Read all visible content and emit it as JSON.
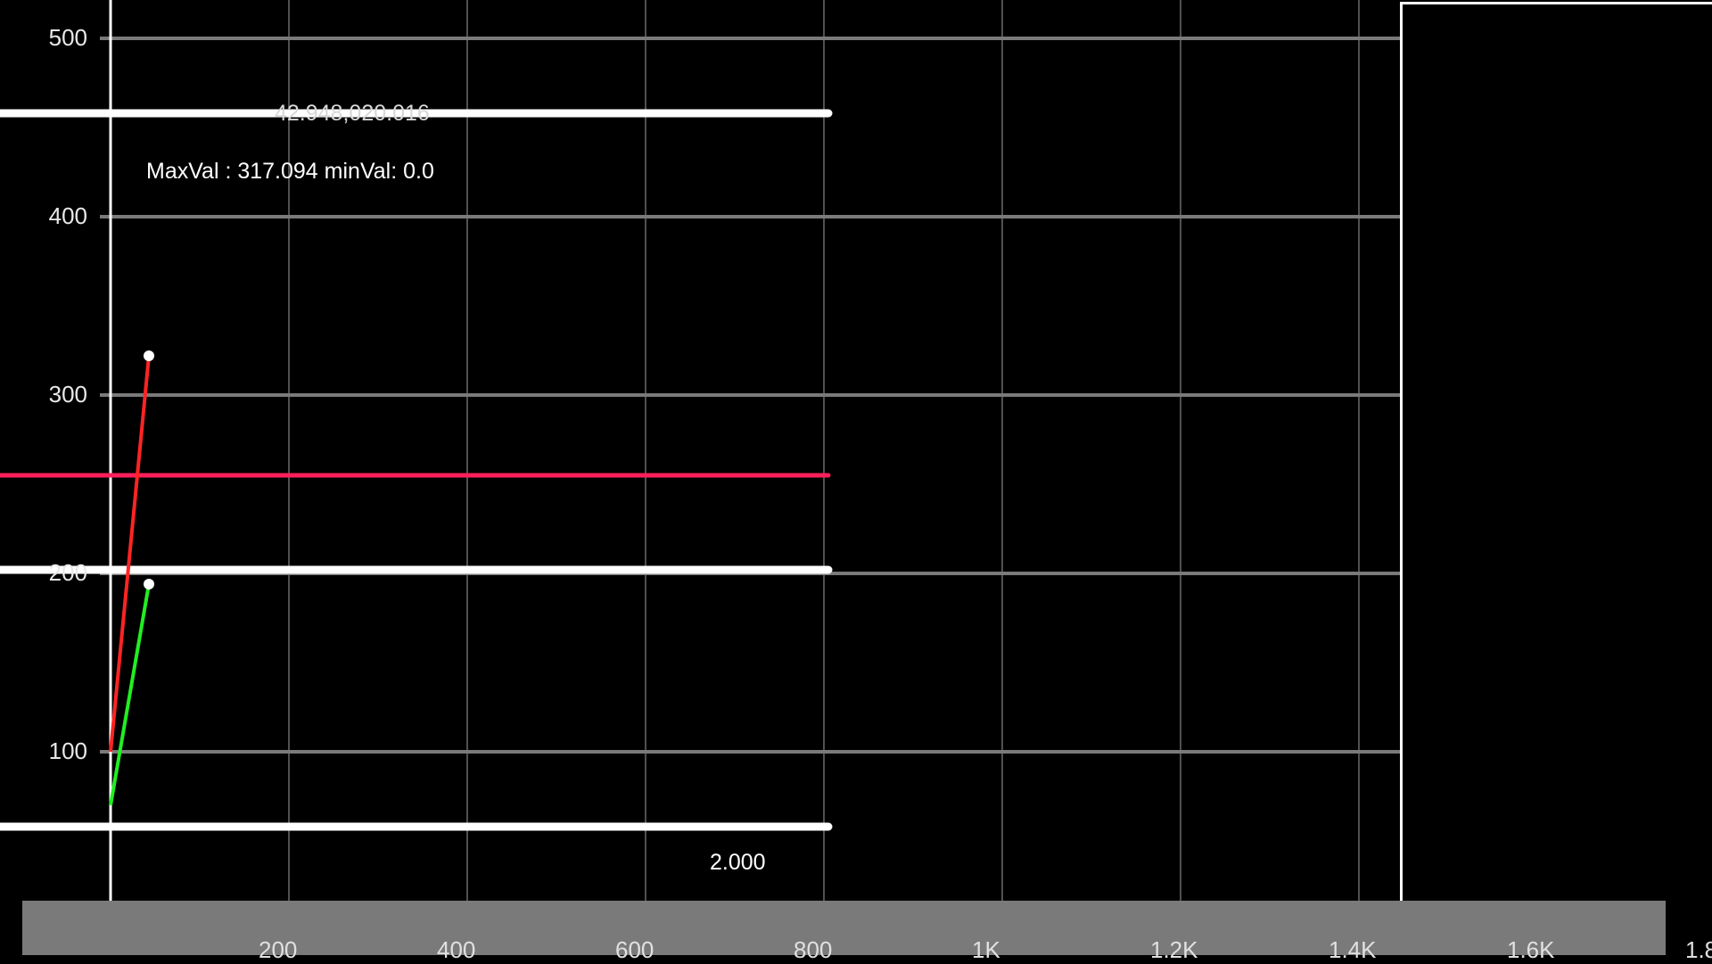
{
  "chart_data": {
    "type": "line",
    "y_ticks": [
      "500",
      "400",
      "300",
      "200",
      "100"
    ],
    "y_tick_values": [
      500,
      400,
      300,
      200,
      100
    ],
    "x_ticks": [
      "200",
      "400",
      "600",
      "800",
      "1K",
      "1.2K",
      "1.4K",
      "1.6K",
      "1.8"
    ],
    "x_tick_values": [
      200,
      400,
      600,
      800,
      1000,
      1200,
      1400,
      1600,
      1800
    ],
    "xlim": [
      0,
      1800
    ],
    "ylim": [
      0,
      520
    ],
    "grid": true,
    "series": [
      {
        "color": "#ff2424",
        "x": [
          0,
          43
        ],
        "y": [
          100,
          322
        ]
      },
      {
        "color": "#22ee22",
        "x": [
          0,
          43
        ],
        "y": [
          70,
          194
        ]
      }
    ],
    "reference_lines": [
      {
        "color": "#ffffff",
        "y": 458,
        "x_end": 705
      },
      {
        "color": "#ff1f5a",
        "y": 255,
        "x_end": 705
      },
      {
        "color": "#ffffff",
        "y": 202,
        "x_end": 705
      },
      {
        "color": "#ffffff",
        "y": 58,
        "x_end": 705
      }
    ],
    "annotations": {
      "top_value": "42.948,020.016",
      "stats": "MaxVal : 317.094 minVal: 0.0",
      "bottom_value": "2.000"
    }
  }
}
